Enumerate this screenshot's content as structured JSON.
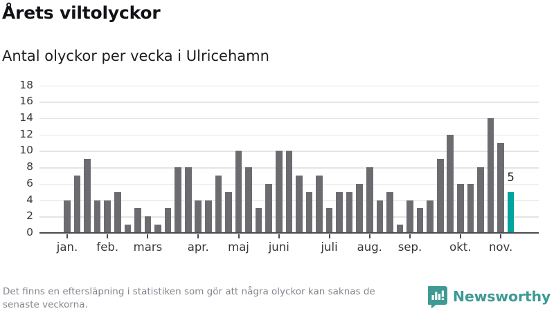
{
  "header": {
    "title": "Årets viltolyckor",
    "subtitle": "Antal olyckor per vecka i Ulricehamn"
  },
  "chart_data": {
    "type": "bar",
    "title": "Årets viltolyckor",
    "subtitle": "Antal olyckor per vecka i Ulricehamn",
    "ylabel": "",
    "xlabel": "",
    "ylim": [
      0,
      18
    ],
    "yticks": [
      0,
      2,
      4,
      6,
      8,
      10,
      12,
      14,
      16,
      18
    ],
    "grid": "horizontal",
    "bar_color": "#6b6b70",
    "highlight_color": "#00a39d",
    "values_per_week": [
      4,
      7,
      9,
      4,
      4,
      5,
      1,
      3,
      2,
      1,
      3,
      8,
      8,
      4,
      4,
      7,
      5,
      10,
      8,
      3,
      6,
      10,
      10,
      7,
      5,
      7,
      3,
      5,
      5,
      6,
      8,
      4,
      5,
      1,
      4,
      3,
      4,
      9,
      12,
      6,
      6,
      8,
      14,
      11,
      5
    ],
    "highlight_index": 44,
    "highlight_value_label": "5",
    "months": [
      {
        "label": "jan.",
        "start_week_index": 0
      },
      {
        "label": "feb.",
        "start_week_index": 4
      },
      {
        "label": "mars",
        "start_week_index": 8
      },
      {
        "label": "apr.",
        "start_week_index": 13
      },
      {
        "label": "maj",
        "start_week_index": 17
      },
      {
        "label": "juni",
        "start_week_index": 21
      },
      {
        "label": "juli",
        "start_week_index": 26
      },
      {
        "label": "aug.",
        "start_week_index": 30
      },
      {
        "label": "sep.",
        "start_week_index": 34
      },
      {
        "label": "okt.",
        "start_week_index": 39
      },
      {
        "label": "nov.",
        "start_week_index": 43
      }
    ]
  },
  "footer": {
    "note_lines": [
      "Det finns en eftersläpning i statistiken som gör att några olyckor kan saknas de",
      "senaste veckorna."
    ],
    "brand": "Newsworthy",
    "brand_color": "#3f9a94"
  }
}
